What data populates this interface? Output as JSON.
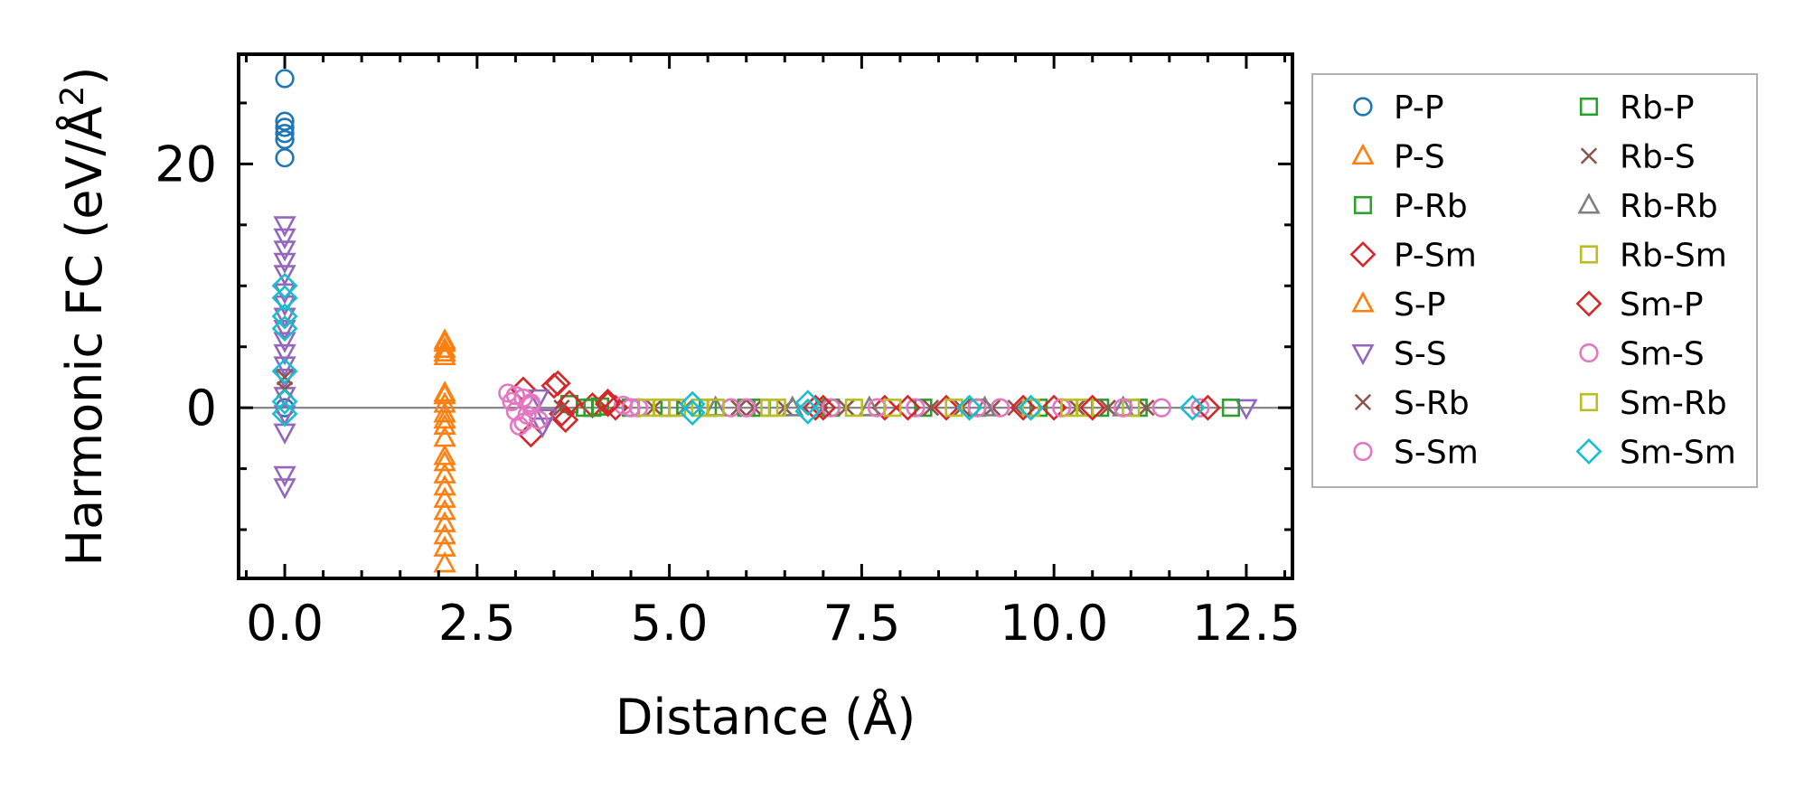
{
  "chart_data": {
    "type": "scatter",
    "title": "",
    "xlabel": "Distance (Å)",
    "ylabel": "Harmonic FC (eV/Å",
    "ylabel_sup": "2",
    "ylabel_end": ")",
    "xlim": [
      -0.6,
      13.1
    ],
    "ylim": [
      -14,
      29
    ],
    "xticks": [
      0.0,
      2.5,
      5.0,
      7.5,
      10.0,
      12.5
    ],
    "xtick_labels": [
      "0.0",
      "2.5",
      "5.0",
      "7.5",
      "10.0",
      "12.5"
    ],
    "yticks": [
      0,
      20
    ],
    "ytick_labels": [
      "0",
      "20"
    ],
    "zero_line": true,
    "legend_position": "outside-right",
    "series": [
      {
        "name": "P-P",
        "marker": "circle",
        "color": "#1f77b4",
        "x": [
          0,
          0,
          0,
          0,
          0,
          0,
          0
        ],
        "y": [
          27,
          23.5,
          23,
          22.5,
          22,
          20.5,
          0
        ]
      },
      {
        "name": "P-S",
        "marker": "triangle",
        "color": "#ff7f0e",
        "x": [
          2.08,
          2.08,
          2.08,
          2.08,
          2.08,
          2.08,
          2.08,
          2.08,
          2.08,
          2.08,
          2.08,
          2.08,
          2.08,
          2.08,
          2.08,
          2.08,
          2.08
        ],
        "y": [
          5.3,
          4.8,
          4.2,
          1,
          0.3,
          -0.5,
          -1.5,
          -2.5,
          -4.5,
          -5.5,
          -6.5,
          -7.5,
          -8.5,
          -9.5,
          -10.5,
          -11.5,
          -12.8
        ]
      },
      {
        "name": "P-Rb",
        "marker": "square",
        "color": "#2ca02c",
        "x": [
          3.7,
          3.9,
          4.1,
          4.5,
          5.5,
          6.2,
          7.1,
          8.3,
          9.0,
          9.8,
          10.6,
          11.1
        ],
        "y": [
          0.3,
          0,
          0.1,
          0,
          0,
          0,
          0,
          0,
          0,
          0,
          0,
          0
        ]
      },
      {
        "name": "P-Sm",
        "marker": "diamond",
        "color": "#d62728",
        "x": [
          3.1,
          3.2,
          3.5,
          3.6,
          3.7,
          4.0,
          4.2,
          4.3,
          6.9,
          7.8,
          8.6,
          10.0
        ],
        "y": [
          1.5,
          -2.2,
          1.8,
          -0.5,
          0.4,
          0.2,
          0.5,
          0,
          0,
          0,
          0,
          0
        ]
      },
      {
        "name": "S-P",
        "marker": "triangle",
        "color": "#ff7f0e",
        "x": [
          2.08,
          2.08,
          2.08,
          2.08,
          2.08
        ],
        "y": [
          5.5,
          4.5,
          1.2,
          -1,
          -4
        ]
      },
      {
        "name": "S-S",
        "marker": "triangle_down",
        "color": "#9467bd",
        "x": [
          0,
          0,
          0,
          0,
          0,
          0,
          0,
          0,
          0,
          0,
          0,
          0,
          0,
          0,
          0,
          0,
          0,
          0,
          3.3,
          3.35,
          3.4,
          12.5
        ],
        "y": [
          15,
          14,
          13,
          12,
          11,
          9.5,
          8.5,
          7.5,
          6.5,
          5.5,
          4.5,
          3.5,
          2.5,
          1,
          -0.5,
          -2,
          -5.5,
          -6.5,
          0.8,
          -1.5,
          -0.8,
          0
        ]
      },
      {
        "name": "S-Rb",
        "marker": "x",
        "color": "#8c564b",
        "x": [
          0,
          0,
          3.6,
          4.8,
          5.9,
          6.5,
          7.0,
          8.4,
          9.2,
          10.3,
          11.2
        ],
        "y": [
          2.5,
          1.5,
          0,
          0,
          0,
          0,
          0,
          0,
          0,
          0,
          0
        ]
      },
      {
        "name": "S-Sm",
        "marker": "circle",
        "color": "#e377c2",
        "x": [
          2.9,
          2.95,
          3.0,
          3.05,
          3.1,
          3.15,
          3.2,
          3.3,
          4.4,
          4.6,
          5.8,
          7.1,
          8.2,
          9.3,
          10.1,
          11.4,
          11.9
        ],
        "y": [
          1.2,
          0.5,
          -0.3,
          -1.5,
          0.8,
          -0.6,
          0.2,
          -1,
          0.2,
          0,
          0,
          0,
          0,
          0,
          0,
          0,
          0
        ]
      },
      {
        "name": "Rb-P",
        "marker": "square",
        "color": "#2ca02c",
        "x": [
          4.0,
          5.0,
          6.0,
          12.3
        ],
        "y": [
          0,
          0,
          0,
          0
        ]
      },
      {
        "name": "Rb-S",
        "marker": "x",
        "color": "#8c564b",
        "x": [
          5.2,
          6.1,
          7.3,
          8.8,
          9.5,
          10.7
        ],
        "y": [
          0,
          0,
          0,
          0,
          0,
          0
        ]
      },
      {
        "name": "Rb-Rb",
        "marker": "triangle",
        "color": "#7f7f7f",
        "x": [
          5.6,
          6.6,
          7.6,
          9.1,
          10.9
        ],
        "y": [
          0,
          0,
          0,
          0,
          0
        ]
      },
      {
        "name": "Rb-Sm",
        "marker": "square",
        "color": "#bcbd22",
        "x": [
          4.7,
          5.1,
          5.6,
          6.3,
          7.4,
          8.7,
          9.7,
          10.4,
          11.0
        ],
        "y": [
          0,
          0,
          0,
          0,
          0,
          0,
          0,
          0,
          0
        ]
      },
      {
        "name": "Sm-P",
        "marker": "diamond",
        "color": "#d62728",
        "x": [
          3.55,
          3.65,
          4.2,
          7.0,
          8.1,
          9.6,
          10.5,
          12.0
        ],
        "y": [
          2,
          -1,
          0.3,
          0,
          0,
          0,
          0,
          0
        ]
      },
      {
        "name": "Sm-S",
        "marker": "circle",
        "color": "#e377c2",
        "x": [
          3.0,
          3.1,
          3.2,
          4.5,
          6.0,
          7.7,
          9.0,
          10.9
        ],
        "y": [
          1,
          -1.2,
          0.4,
          0,
          0,
          0,
          0,
          0
        ]
      },
      {
        "name": "Sm-Rb",
        "marker": "square",
        "color": "#bcbd22",
        "x": [
          4.9,
          5.4,
          6.4,
          7.9,
          10.2
        ],
        "y": [
          0,
          0,
          0,
          0,
          0
        ]
      },
      {
        "name": "Sm-Sm",
        "marker": "diamond",
        "color": "#17becf",
        "x": [
          0,
          0,
          0,
          0,
          0,
          0,
          0,
          5.3,
          5.3,
          6.8,
          6.8,
          8.9,
          9.7,
          11.8
        ],
        "y": [
          10,
          9,
          7.5,
          6.5,
          3,
          0.5,
          -0.5,
          0.3,
          -0.4,
          0.4,
          -0.3,
          0,
          0,
          0
        ]
      }
    ]
  }
}
